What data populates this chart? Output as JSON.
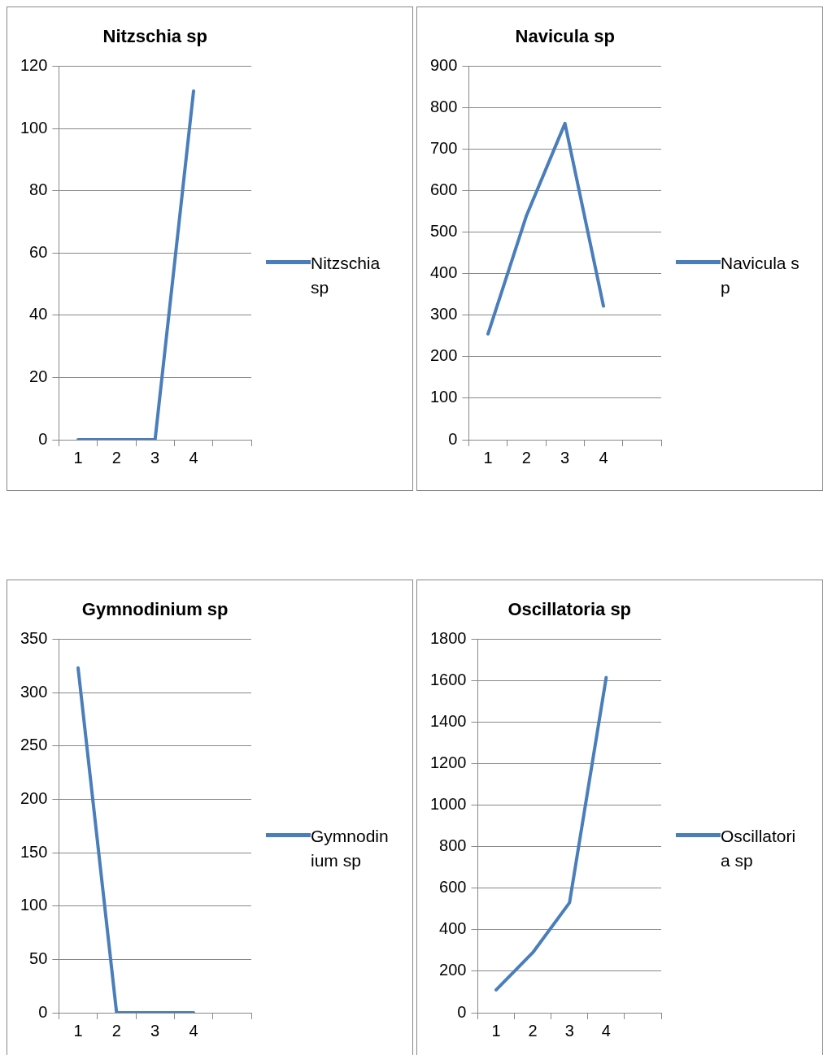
{
  "chart_data": [
    {
      "type": "line",
      "title": "Nitzschia sp",
      "categories": [
        "1",
        "2",
        "3",
        "4",
        null
      ],
      "series": [
        {
          "name": "Nitzschia sp",
          "color": "#4a7ebb",
          "values": [
            0,
            0,
            0,
            112,
            null
          ]
        }
      ],
      "ylim": [
        0,
        120
      ],
      "yticks": [
        0,
        20,
        40,
        60,
        80,
        100,
        120
      ],
      "grid": "y",
      "legend": "right",
      "marker": "none"
    },
    {
      "type": "line",
      "title": "Navicula sp",
      "categories": [
        "1",
        "2",
        "3",
        "4",
        null
      ],
      "series": [
        {
          "name": "Navicula sp",
          "color": "#4a7ebb",
          "values": [
            255,
            540,
            762,
            322,
            null
          ]
        }
      ],
      "ylim": [
        0,
        900
      ],
      "yticks": [
        0,
        100,
        200,
        300,
        400,
        500,
        600,
        700,
        800,
        900
      ],
      "grid": "y",
      "legend": "right",
      "marker": "none"
    },
    {
      "type": "line",
      "title": "Gymnodinium sp",
      "categories": [
        "1",
        "2",
        "3",
        "4",
        null
      ],
      "series": [
        {
          "name": "Gymnodinium sp",
          "color": "#4a7ebb",
          "values": [
            323,
            0,
            0,
            0,
            null
          ]
        }
      ],
      "ylim": [
        0,
        350
      ],
      "yticks": [
        0,
        50,
        100,
        150,
        200,
        250,
        300,
        350
      ],
      "grid": "y",
      "legend": "right",
      "marker": "none"
    },
    {
      "type": "line",
      "title": "Oscillatoria sp",
      "categories": [
        "1",
        "2",
        "3",
        "4",
        null
      ],
      "series": [
        {
          "name": "Oscillatoria sp",
          "color": "#4a7ebb",
          "values": [
            110,
            290,
            530,
            1615,
            null
          ]
        }
      ],
      "ylim": [
        0,
        1800
      ],
      "yticks": [
        0,
        200,
        400,
        600,
        800,
        1000,
        1200,
        1400,
        1600,
        1800
      ],
      "grid": "y",
      "legend": "right",
      "marker": "none"
    }
  ]
}
